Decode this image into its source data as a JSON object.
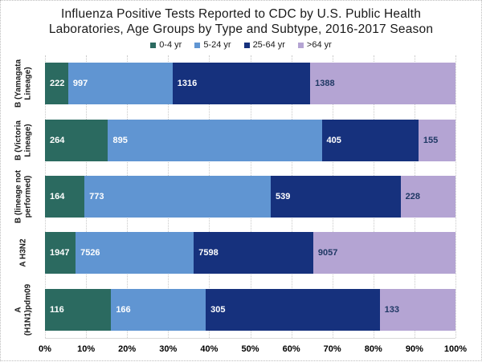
{
  "title_lines": [
    "Influenza Positive Tests Reported to CDC by U.S. Public Health",
    "Laboratories, Age Groups by Type and Subtype, 2016-2017 Season"
  ],
  "chart_data": {
    "type": "bar",
    "variant": "horizontal-stacked-100pct",
    "title": "Influenza Positive Tests Reported to CDC by U.S. Public Health Laboratories, Age Groups by Type and Subtype, 2016-2017 Season",
    "categories": [
      "B (Yamagata\nLineage)",
      "B (Victoria\nLineage)",
      "B (lineage not\nperformed)",
      "A H3N2",
      "A\n(H1N1)pdm09"
    ],
    "series": [
      {
        "name": "0-4 yr",
        "color": "#2B6A60",
        "label_color": "#FFFFFF",
        "values": [
          222,
          264,
          164,
          1947,
          116
        ]
      },
      {
        "name": "5-24 yr",
        "color": "#6095D2",
        "label_color": "#FFFFFF",
        "values": [
          997,
          895,
          773,
          7526,
          166
        ]
      },
      {
        "name": "25-64 yr",
        "color": "#16317D",
        "label_color": "#FFFFFF",
        "values": [
          1316,
          405,
          539,
          7598,
          305
        ]
      },
      {
        "name": ">64 yr",
        "color": "#B4A4D3",
        "label_color": "#1F3864",
        "values": [
          1388,
          155,
          228,
          9057,
          133
        ]
      }
    ],
    "x_tick_labels": [
      "0%",
      "10%",
      "20%",
      "30%",
      "40%",
      "50%",
      "60%",
      "70%",
      "80%",
      "90%",
      "100%"
    ],
    "xlim": [
      0,
      100
    ],
    "grid": true,
    "legend_position": "top"
  },
  "style_colors": {
    "gridline": "#C9C9C9",
    "axis_line": "#D9D9D9",
    "frame_border": "#BDBDBD",
    "title_text": "#1A1A1A"
  }
}
